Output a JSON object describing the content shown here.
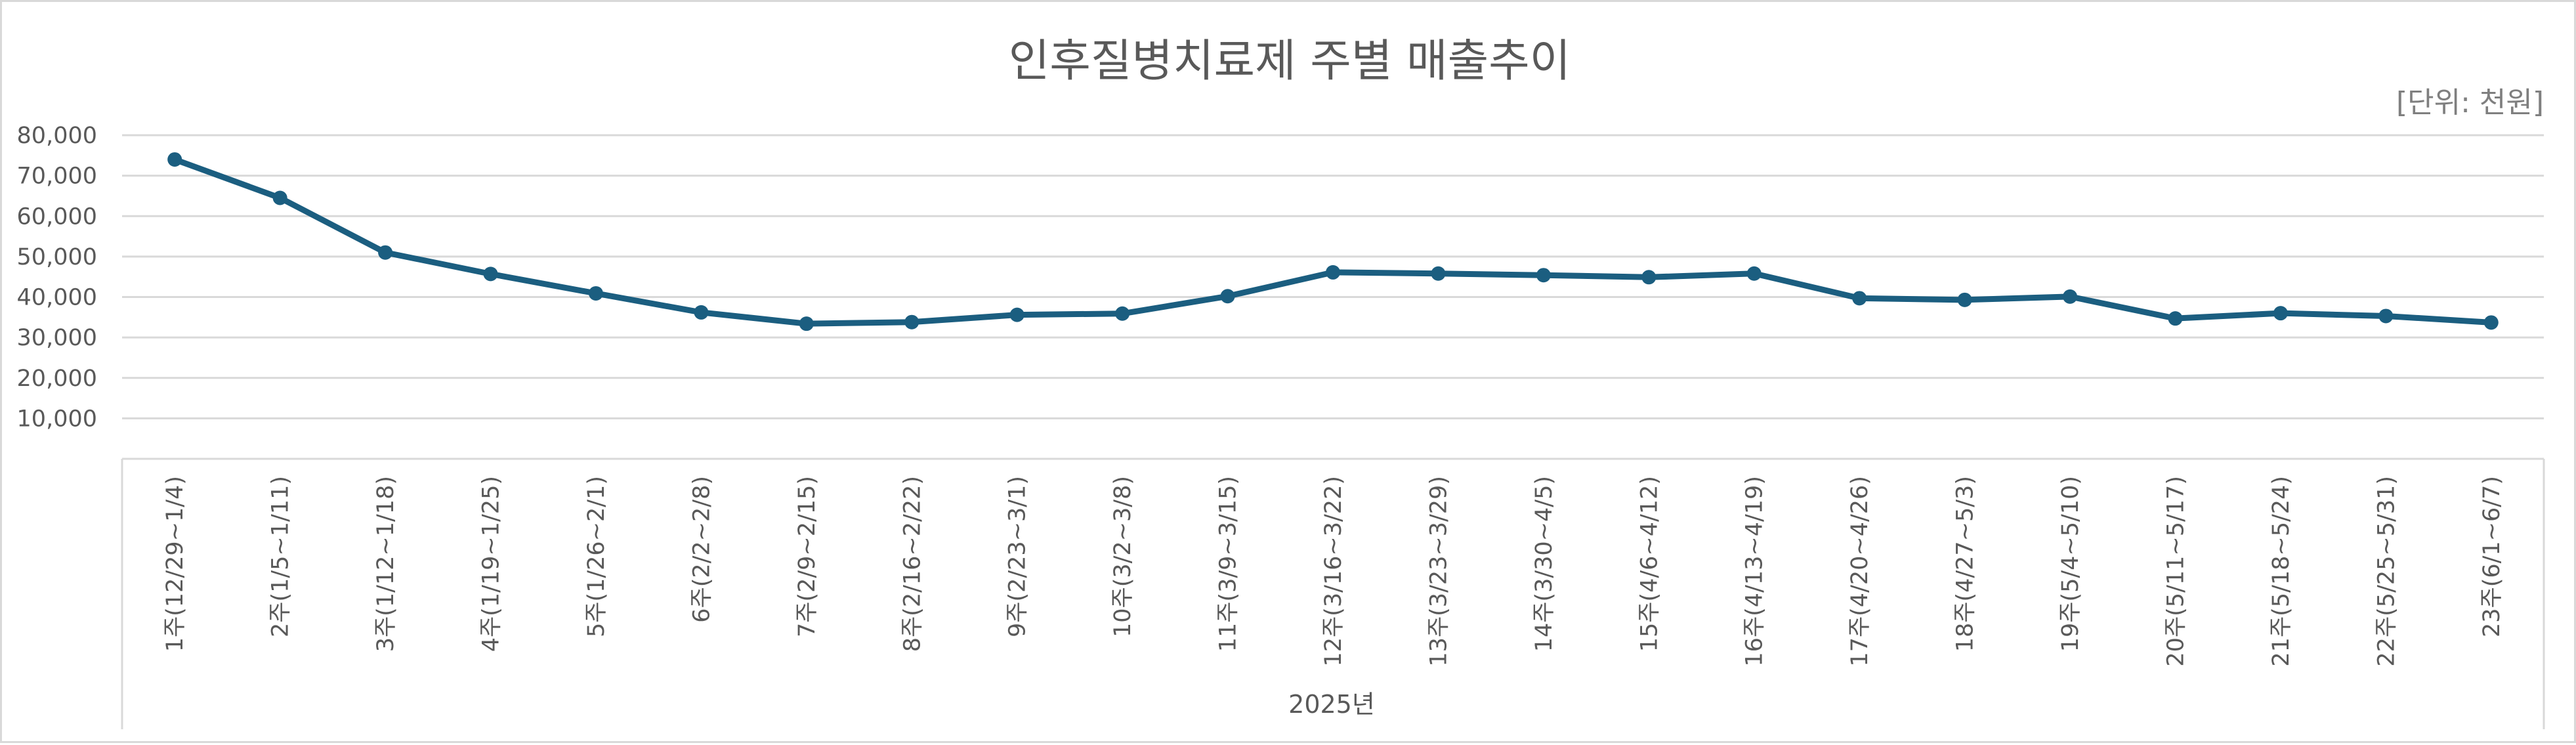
{
  "chart_data": {
    "type": "line",
    "title": "인후질병치료제 주별 매출추이",
    "unit_label": "[단위: 천원]",
    "xlabel": "2025년",
    "ylabel": "",
    "ylim": [
      0,
      80000
    ],
    "yticks": [
      "10,000",
      "20,000",
      "30,000",
      "40,000",
      "50,000",
      "60,000",
      "70,000",
      "80,000"
    ],
    "ytick_values": [
      10000,
      20000,
      30000,
      40000,
      50000,
      60000,
      70000,
      80000
    ],
    "grid": true,
    "legend": "none",
    "categories": [
      "1주(12/29~1/4)",
      "2주(1/5~1/11)",
      "3주(1/12~1/18)",
      "4주(1/19~1/25)",
      "5주(1/26~2/1)",
      "6주(2/2~2/8)",
      "7주(2/9~2/15)",
      "8주(2/16~2/22)",
      "9주(2/23~3/1)",
      "10주(3/2~3/8)",
      "11주(3/9~3/15)",
      "12주(3/16~3/22)",
      "13주(3/23~3/29)",
      "14주(3/30~4/5)",
      "15주(4/6~4/12)",
      "16주(4/13~4/19)",
      "17주(4/20~4/26)",
      "18주(4/27~5/3)",
      "19주(5/4~5/10)",
      "20주(5/11~5/17)",
      "21주(5/18~5/24)",
      "22주(5/25~5/31)",
      "23주(6/1~6/7)"
    ],
    "series": [
      {
        "color": "#1b5e80",
        "values": [
          74000,
          64500,
          51000,
          45700,
          40900,
          36200,
          33400,
          33800,
          35600,
          35900,
          40200,
          46100,
          45800,
          45400,
          44900,
          45800,
          39700,
          39300,
          40100,
          34700,
          36000,
          35300,
          33700
        ]
      }
    ]
  },
  "colors": {
    "line": "#1b5e80",
    "grid": "#d9d9d9",
    "axis": "#d9d9d9",
    "text": "#595959"
  }
}
